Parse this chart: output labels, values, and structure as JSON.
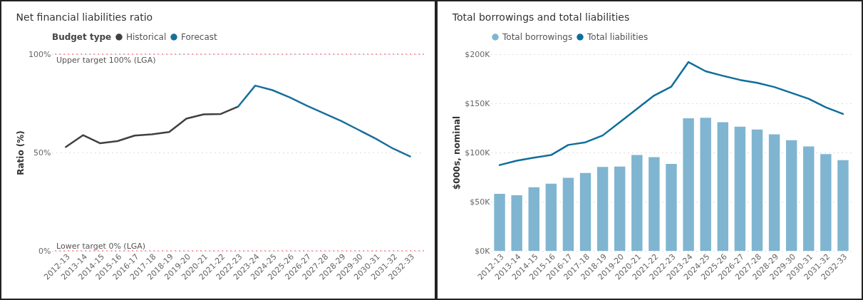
{
  "chart_data": [
    {
      "type": "line",
      "title": "Net financial liabilities ratio",
      "ylabel": "Ratio (%)",
      "legend_title": "Budget type",
      "legend": "top left",
      "grid": "y",
      "categories": [
        "2012-13",
        "2013-14",
        "2014-15",
        "2015-16",
        "2016-17",
        "2017-18",
        "2018-19",
        "2019-20",
        "2020-21",
        "2021-22",
        "2022-23",
        "2023-24",
        "2024-25",
        "2025-26",
        "2026-27",
        "2027-28",
        "2028-29",
        "2029-30",
        "2030-31",
        "2031-32",
        "2032-33"
      ],
      "series": [
        {
          "name": "Historical",
          "color": "#404040",
          "values": [
            52.8,
            58.8,
            54.7,
            55.8,
            58.6,
            59.2,
            60.4,
            67.2,
            69.4,
            69.6,
            73.3,
            null,
            null,
            null,
            null,
            null,
            null,
            null,
            null,
            null,
            null
          ]
        },
        {
          "name": "Forecast",
          "color": "#1a6f9a",
          "values": [
            null,
            null,
            null,
            null,
            null,
            null,
            null,
            null,
            null,
            null,
            73.3,
            84.0,
            81.7,
            78.0,
            73.8,
            69.9,
            66.0,
            61.5,
            57.0,
            52.0,
            48.0
          ]
        }
      ],
      "ylim": [
        0,
        100
      ],
      "yticks": [
        {
          "value": 0,
          "label": "0%"
        },
        {
          "value": 50,
          "label": "50%"
        },
        {
          "value": 100,
          "label": "100%"
        }
      ],
      "ref_lines": [
        {
          "axis": "y",
          "value": 100,
          "label": "Upper target 100% (LGA)",
          "color": "#f4a5ae",
          "line_style": "dotted"
        },
        {
          "axis": "y",
          "value": 0,
          "label": "Lower target 0% (LGA)",
          "color": "#f4a5ae",
          "line_style": "dotted"
        }
      ]
    },
    {
      "type": "bar",
      "title": "Total borrowings and total liabilities",
      "ylabel": "$000s, nominal",
      "legend": "top left",
      "grid": "y",
      "categories": [
        "2012-13",
        "2013-14",
        "2014-15",
        "2015-16",
        "2016-17",
        "2017-18",
        "2018-19",
        "2019-20",
        "2020-21",
        "2021-22",
        "2022-23",
        "2023-24",
        "2024-25",
        "2025-26",
        "2026-27",
        "2027-28",
        "2028-29",
        "2029-30",
        "2030-31",
        "2031-32",
        "2032-33"
      ],
      "series": [
        {
          "name": "Total borrowings",
          "type": "bar",
          "color": "#7fb5d0",
          "values": [
            58000,
            56500,
            64700,
            68300,
            74300,
            79100,
            85400,
            85700,
            97400,
            95300,
            88400,
            134700,
            135300,
            130800,
            126300,
            123300,
            118500,
            112500,
            106200,
            98300,
            92300
          ]
        },
        {
          "name": "Total liabilities",
          "type": "line",
          "color": "#0e6e9a",
          "values": [
            87200,
            91700,
            94700,
            97400,
            107700,
            110400,
            117300,
            130800,
            144400,
            157900,
            167000,
            192000,
            182600,
            178000,
            173800,
            170800,
            166600,
            160600,
            154600,
            145900,
            139200
          ]
        }
      ],
      "ylim": [
        0,
        200000
      ],
      "yticks": [
        {
          "value": 0,
          "label": "$0K"
        },
        {
          "value": 50000,
          "label": "$50K"
        },
        {
          "value": 100000,
          "label": "$100K"
        },
        {
          "value": 150000,
          "label": "$150K"
        },
        {
          "value": 200000,
          "label": "$200K"
        }
      ]
    }
  ]
}
